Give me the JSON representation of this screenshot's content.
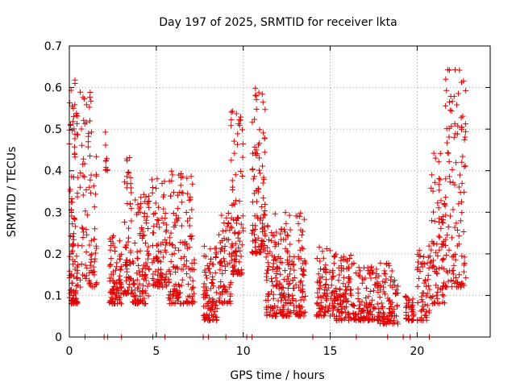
{
  "chart_data": {
    "type": "scatter",
    "title": "Day 197 of 2025, SRMTID for receiver lkta",
    "xlabel": "GPS time / hours",
    "ylabel": "SRMTID / TECUs",
    "xlim": [
      0,
      24.2
    ],
    "ylim": [
      0,
      0.7
    ],
    "xticks": [
      0,
      5,
      10,
      15,
      20
    ],
    "yticks": [
      0,
      0.1,
      0.2,
      0.3,
      0.4,
      0.5,
      0.6,
      0.7
    ],
    "grid": true,
    "marker": "+",
    "color": "#e00000",
    "seed": 197,
    "clusters": [
      {
        "t0": 0.0,
        "t1": 0.5,
        "lo": 0.08,
        "hi": 0.63,
        "n": 110
      },
      {
        "t0": 0.6,
        "t1": 1.6,
        "lo": 0.12,
        "hi": 0.6,
        "n": 90
      },
      {
        "t0": 2.0,
        "t1": 2.2,
        "lo": 0.4,
        "hi": 0.51,
        "n": 10
      },
      {
        "t0": 2.3,
        "t1": 3.0,
        "lo": 0.08,
        "hi": 0.25,
        "n": 85
      },
      {
        "t0": 3.1,
        "t1": 3.6,
        "lo": 0.1,
        "hi": 0.45,
        "n": 60
      },
      {
        "t0": 3.6,
        "t1": 4.6,
        "lo": 0.08,
        "hi": 0.35,
        "n": 110
      },
      {
        "t0": 4.7,
        "t1": 5.6,
        "lo": 0.12,
        "hi": 0.4,
        "n": 90
      },
      {
        "t0": 5.7,
        "t1": 7.2,
        "lo": 0.08,
        "hi": 0.4,
        "n": 150
      },
      {
        "t0": 7.7,
        "t1": 8.5,
        "lo": 0.04,
        "hi": 0.22,
        "n": 90
      },
      {
        "t0": 8.6,
        "t1": 9.3,
        "lo": 0.08,
        "hi": 0.3,
        "n": 70
      },
      {
        "t0": 9.3,
        "t1": 10.0,
        "lo": 0.15,
        "hi": 0.55,
        "n": 90
      },
      {
        "t0": 10.5,
        "t1": 11.3,
        "lo": 0.2,
        "hi": 0.6,
        "n": 100
      },
      {
        "t0": 11.3,
        "t1": 12.5,
        "lo": 0.05,
        "hi": 0.3,
        "n": 130
      },
      {
        "t0": 12.5,
        "t1": 13.6,
        "lo": 0.05,
        "hi": 0.3,
        "n": 110
      },
      {
        "t0": 14.2,
        "t1": 15.3,
        "lo": 0.05,
        "hi": 0.22,
        "n": 100
      },
      {
        "t0": 15.3,
        "t1": 16.5,
        "lo": 0.04,
        "hi": 0.2,
        "n": 110
      },
      {
        "t0": 16.6,
        "t1": 17.8,
        "lo": 0.04,
        "hi": 0.17,
        "n": 110
      },
      {
        "t0": 17.8,
        "t1": 18.9,
        "lo": 0.03,
        "hi": 0.18,
        "n": 90
      },
      {
        "t0": 19.3,
        "t1": 19.8,
        "lo": 0.04,
        "hi": 0.1,
        "n": 40
      },
      {
        "t0": 20.0,
        "t1": 20.8,
        "lo": 0.04,
        "hi": 0.22,
        "n": 60
      },
      {
        "t0": 20.8,
        "t1": 21.6,
        "lo": 0.08,
        "hi": 0.45,
        "n": 80
      },
      {
        "t0": 21.6,
        "t1": 22.8,
        "lo": 0.12,
        "hi": 0.65,
        "n": 120
      }
    ],
    "baseline_points": [
      0.9,
      2.0,
      2.2,
      3.0,
      4.8,
      5.5,
      7.7,
      8.0,
      9.0,
      10.2,
      10.5,
      14.0,
      15.0,
      16.5,
      18.3,
      19.2,
      19.6,
      20.7
    ]
  }
}
